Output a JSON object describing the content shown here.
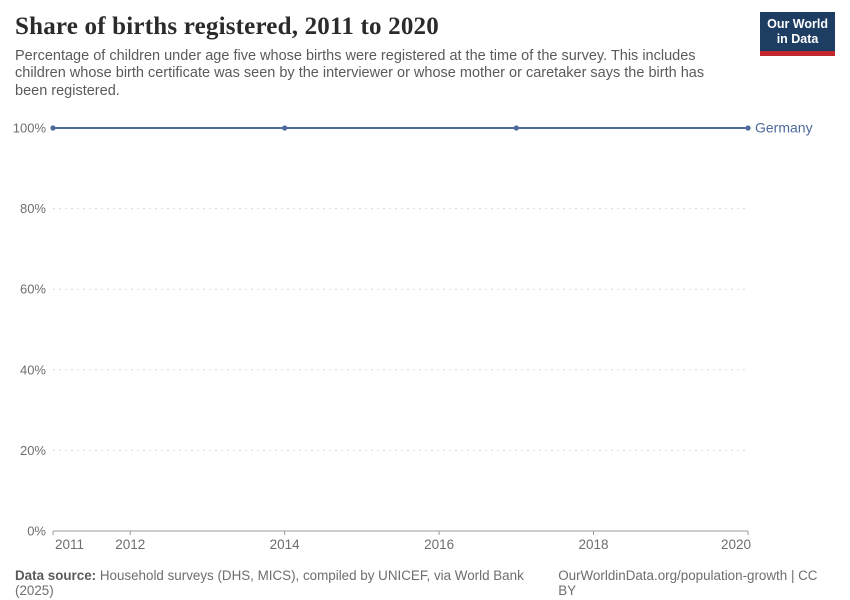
{
  "header": {
    "title": "Share of births registered, 2011 to 2020",
    "subtitle_lines": [
      "Percentage of children under age five whose births were registered at the time of the survey. This includes",
      "children whose birth certificate was seen by the interviewer or whose mother or caretaker says the birth has",
      "been registered."
    ],
    "logo": {
      "line1": "Our World",
      "line2": "in Data"
    }
  },
  "chart_data": {
    "type": "line",
    "title": "Share of births registered, 2011 to 2020",
    "series": [
      {
        "name": "Germany",
        "color": "#4C6A9C",
        "x": [
          2011,
          2014,
          2017,
          2020
        ],
        "values": [
          100,
          100,
          100,
          100
        ]
      }
    ],
    "xlim": [
      2011,
      2020
    ],
    "ylim": [
      0,
      100
    ],
    "xticks": [
      2011,
      2012,
      2014,
      2016,
      2018,
      2020
    ],
    "yticks": [
      0,
      20,
      40,
      60,
      80,
      100
    ],
    "ytick_suffix": "%",
    "grid": "dashed-horizontal",
    "legend_position": "end-of-line"
  },
  "footer": {
    "datasource_label": "Data source:",
    "datasource_text": "Household surveys (DHS, MICS), compiled by UNICEF, via World Bank (2025)",
    "link": "OurWorldinData.org/population-growth | CC BY"
  },
  "colors": {
    "series_blue": "#4C6A9C",
    "logo_navy": "#1d3d63",
    "logo_red": "#c1272d",
    "grid": "#dadada",
    "axis": "#9b9b9b",
    "tick_text": "#6e6e6e"
  }
}
